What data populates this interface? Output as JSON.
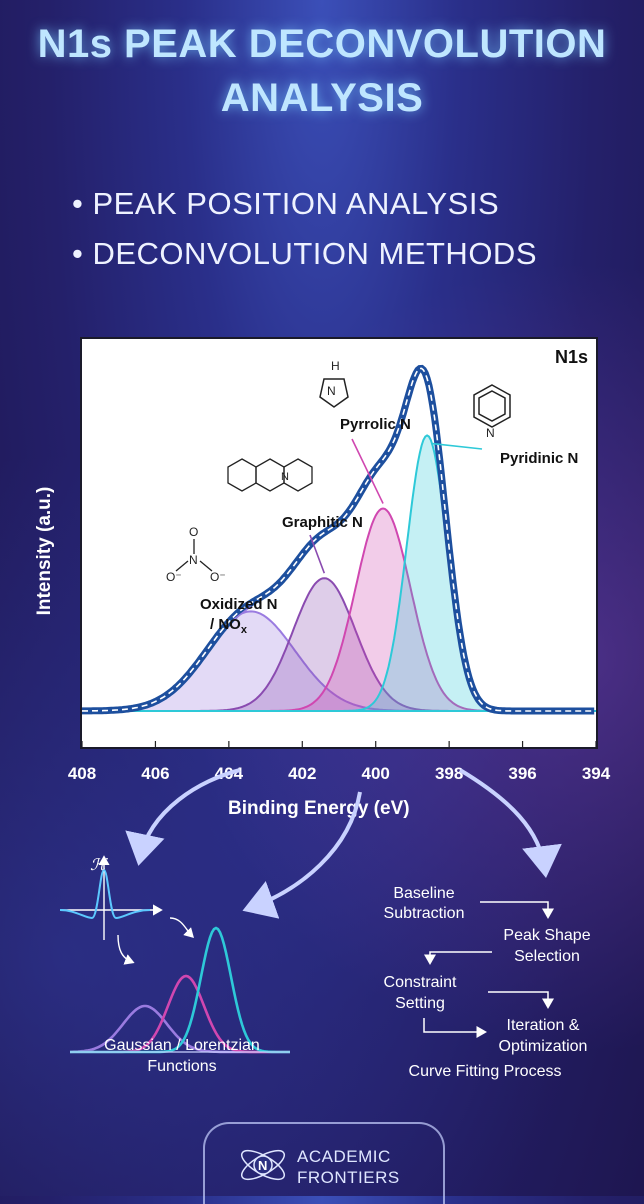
{
  "header": {
    "title_line1": "N1s PEAK DECONVOLUTION",
    "title_line2": "ANALYSIS",
    "bullets": [
      "• PEAK POSITION ANALYSIS",
      "• DECONVOLUTION METHODS"
    ]
  },
  "chart_data": {
    "type": "area",
    "title": "N1s",
    "xlabel": "Binding Energy (eV)",
    "ylabel": "Intensity (a.u.)",
    "xlim": [
      408,
      394
    ],
    "x_reversed": true,
    "x_ticks": [
      "408",
      "406",
      "404",
      "402",
      "400",
      "398",
      "396",
      "394"
    ],
    "grid": false,
    "peaks": [
      {
        "name": "Oxidized N",
        "name_line2": "/ NO",
        "subscript": "x",
        "center": 403.4,
        "height": 0.3,
        "sigma": 1.2,
        "color": "#9a7be0"
      },
      {
        "name": "Graphitic N",
        "center": 401.4,
        "height": 0.4,
        "sigma": 0.85,
        "color": "#8a4bb0"
      },
      {
        "name": "Pyrrolic N",
        "center": 399.8,
        "height": 0.61,
        "sigma": 0.75,
        "color": "#d047b0"
      },
      {
        "name": "Pyridinic N",
        "center": 398.6,
        "height": 0.83,
        "sigma": 0.55,
        "color": "#2ec9d8"
      }
    ],
    "envelope_color": "#1d4f9e"
  },
  "diagram": {
    "left_caption_line1": "Gaussian / Lorentzian",
    "left_caption_line2": "Functions",
    "steps": [
      "Baseline",
      "Subtraction",
      "Peak Shape",
      "Selection",
      "Constraint",
      "Setting",
      "Iteration &",
      "Optimization"
    ],
    "process_caption": "Curve Fitting Process",
    "func_symbol": "ℋ"
  },
  "footer": {
    "line1": "ACADEMIC",
    "line2": "FRONTIERS",
    "logo_letter": "N"
  }
}
